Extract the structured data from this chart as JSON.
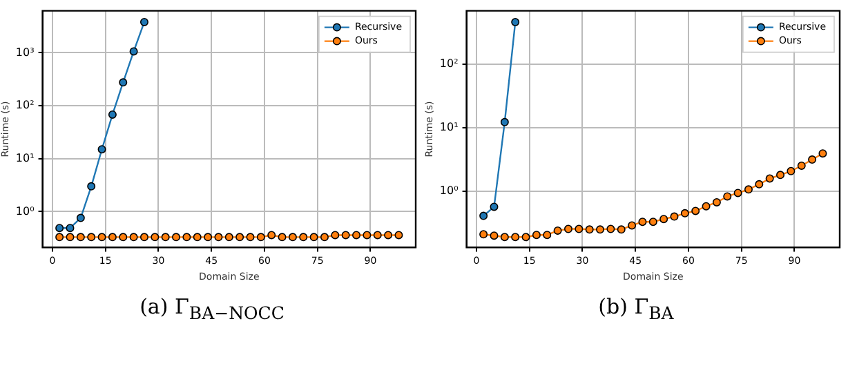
{
  "chart_data": [
    {
      "type": "line",
      "xlabel": "Domain Size",
      "ylabel": "Runtime (s)",
      "log": "y",
      "grid": true,
      "legend": "top right",
      "marker": "circle",
      "x": [
        2,
        5,
        8,
        11,
        14,
        17,
        20,
        23,
        26,
        29,
        32,
        35,
        38,
        41,
        44,
        47,
        50,
        53,
        56,
        59,
        62,
        65,
        68,
        71,
        74,
        77,
        80,
        83,
        86,
        89,
        92,
        95,
        98
      ],
      "xlim": [
        -2.8,
        102.8
      ],
      "xticks": [
        0,
        15,
        30,
        45,
        60,
        75,
        90
      ],
      "ylim": [
        0.21,
        6200
      ],
      "yticks": [
        {
          "value": 1,
          "label": "10⁰"
        },
        {
          "value": 10,
          "label": "10¹"
        },
        {
          "value": 100,
          "label": "10²"
        },
        {
          "value": 1000,
          "label": "10³"
        }
      ],
      "series": [
        {
          "name": "Recursive",
          "color": "#1f77b4",
          "x": [
            2,
            5,
            8,
            11,
            14,
            17,
            20,
            23,
            26
          ],
          "values": [
            0.49,
            0.49,
            0.76,
            3.0,
            15,
            68,
            275,
            1060,
            3800
          ]
        },
        {
          "name": "Ours",
          "color": "#ff7f0e",
          "values": [
            0.33,
            0.33,
            0.33,
            0.33,
            0.33,
            0.33,
            0.33,
            0.33,
            0.33,
            0.33,
            0.33,
            0.33,
            0.33,
            0.33,
            0.33,
            0.33,
            0.33,
            0.33,
            0.33,
            0.33,
            0.36,
            0.33,
            0.33,
            0.33,
            0.33,
            0.33,
            0.36,
            0.36,
            0.36,
            0.36,
            0.36,
            0.36,
            0.36
          ]
        }
      ],
      "annotations": [
        "(a) Γ$_{BA−NOCC}$"
      ]
    },
    {
      "type": "line",
      "xlabel": "Domain Size",
      "ylabel": "Runtime (s)",
      "log": "y",
      "grid": true,
      "legend": "top right",
      "marker": "circle",
      "x": [
        2,
        5,
        8,
        11,
        14,
        17,
        20,
        23,
        26,
        29,
        32,
        35,
        38,
        41,
        44,
        47,
        50,
        53,
        56,
        59,
        62,
        65,
        68,
        71,
        74,
        77,
        80,
        83,
        86,
        89,
        92,
        95,
        98
      ],
      "xlim": [
        -2.8,
        102.8
      ],
      "xticks": [
        0,
        15,
        30,
        45,
        60,
        75,
        90
      ],
      "ylim": [
        0.13,
        700
      ],
      "yticks": [
        {
          "value": 1,
          "label": "10⁰"
        },
        {
          "value": 10,
          "label": "10¹"
        },
        {
          "value": 100,
          "label": "10²"
        }
      ],
      "series": [
        {
          "name": "Recursive",
          "color": "#1f77b4",
          "x": [
            2,
            5,
            8,
            11
          ],
          "values": [
            0.41,
            0.57,
            12.3,
            464
          ]
        },
        {
          "name": "Ours",
          "color": "#ff7f0e",
          "values": [
            0.21,
            0.2,
            0.19,
            0.19,
            0.19,
            0.205,
            0.205,
            0.24,
            0.255,
            0.255,
            0.25,
            0.25,
            0.255,
            0.25,
            0.29,
            0.33,
            0.33,
            0.365,
            0.4,
            0.45,
            0.49,
            0.58,
            0.67,
            0.83,
            0.94,
            1.07,
            1.29,
            1.59,
            1.81,
            2.08,
            2.53,
            3.16,
            3.95
          ]
        }
      ],
      "annotations": [
        "(b) Γ$_{BA}$"
      ]
    }
  ]
}
